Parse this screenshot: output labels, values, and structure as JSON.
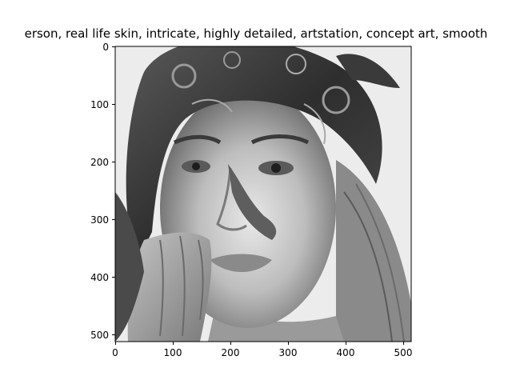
{
  "figure": {
    "title": "erson,  real life skin, intricate, highly detailed, artstation, concept art, smooth",
    "image": {
      "description": "grayscale portrait with ornate helmet and hand",
      "x_ticks": [
        "0",
        "100",
        "200",
        "300",
        "400",
        "500"
      ],
      "y_ticks": [
        "0",
        "100",
        "200",
        "300",
        "400",
        "500"
      ]
    }
  }
}
